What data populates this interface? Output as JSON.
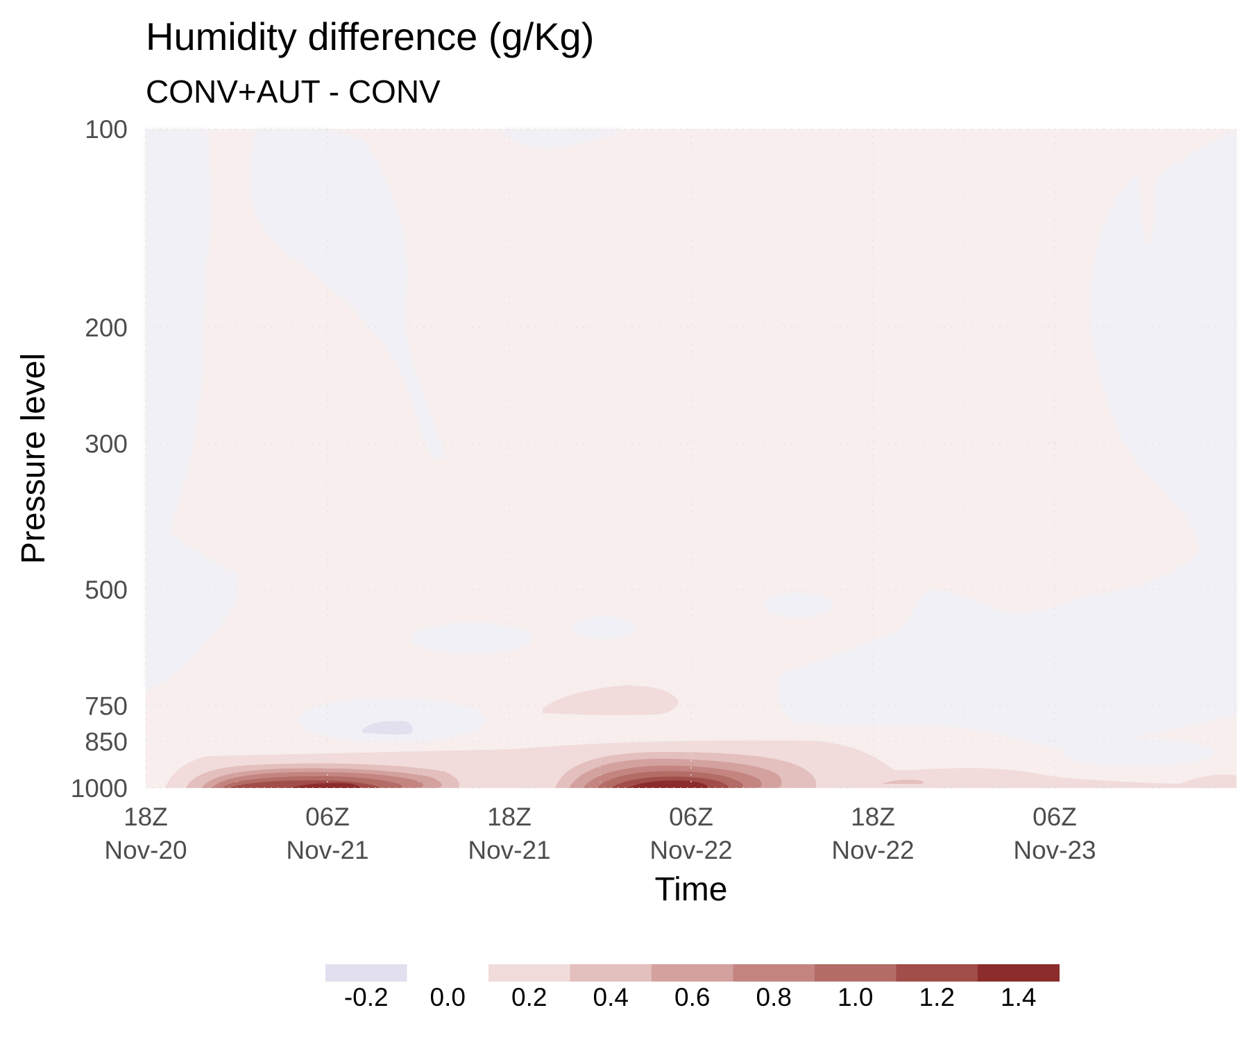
{
  "chart_data": {
    "type": "heatmap",
    "title": "Humidity difference (g/Kg)",
    "subtitle": "CONV+AUT - CONV",
    "xlabel": "Time",
    "ylabel": "Pressure level",
    "y_scale": "log",
    "y_reversed": true,
    "ylim": [
      1000,
      100
    ],
    "xlim": [
      "2019-11-20T18:00",
      "2019-11-23T18:00"
    ],
    "x_ticks": [
      {
        "value": "2019-11-20T18:00",
        "line1": "18Z",
        "line2": "Nov-20"
      },
      {
        "value": "2019-11-21T06:00",
        "line1": "06Z",
        "line2": "Nov-21"
      },
      {
        "value": "2019-11-21T18:00",
        "line1": "18Z",
        "line2": "Nov-21"
      },
      {
        "value": "2019-11-22T06:00",
        "line1": "06Z",
        "line2": "Nov-22"
      },
      {
        "value": "2019-11-22T18:00",
        "line1": "18Z",
        "line2": "Nov-22"
      },
      {
        "value": "2019-11-23T06:00",
        "line1": "06Z",
        "line2": "Nov-23"
      }
    ],
    "y_ticks": [
      100,
      200,
      300,
      500,
      750,
      850,
      1000
    ],
    "grid": true,
    "legend": {
      "position": "bottom",
      "bins": [
        {
          "label": "-0.2",
          "range": [
            -0.3,
            -0.1
          ],
          "color": "#e2dfef"
        },
        {
          "label": "0.0",
          "range": [
            -0.1,
            0.1
          ],
          "color": "#ffffff"
        },
        {
          "label": "0.2",
          "range": [
            0.1,
            0.3
          ],
          "color": "#f1dcdb"
        },
        {
          "label": "0.4",
          "range": [
            0.3,
            0.5
          ],
          "color": "#e3bfbd"
        },
        {
          "label": "0.6",
          "range": [
            0.5,
            0.7
          ],
          "color": "#d3a19e"
        },
        {
          "label": "0.8",
          "range": [
            0.7,
            0.9
          ],
          "color": "#c48580"
        },
        {
          "label": "1.0",
          "range": [
            0.9,
            1.1
          ],
          "color": "#b36c66"
        },
        {
          "label": "1.2",
          "range": [
            1.1,
            1.3
          ],
          "color": "#a14d49"
        },
        {
          "label": "1.4",
          "range": [
            1.3,
            1.5
          ],
          "color": "#8c2c2c"
        }
      ]
    },
    "background_fields": [
      {
        "region": "upper-left column",
        "time_range": [
          "2019-11-20T18:00",
          "2019-11-21T00:00"
        ],
        "pressure_range": [
          100,
          320
        ],
        "value": -0.05,
        "color": "#f1f0f6"
      },
      {
        "region": "upper column near Nov-21 06Z",
        "time_range": [
          "2019-11-21T03:00",
          "2019-11-21T09:00"
        ],
        "pressure_range": [
          100,
          310
        ],
        "value": -0.05,
        "color": "#f1f0f6"
      },
      {
        "region": "right side mid levels",
        "time_range": [
          "2019-11-22T15:00",
          "2019-11-23T18:00"
        ],
        "pressure_range": [
          500,
          850
        ],
        "value": -0.05,
        "color": "#f1f0f6"
      },
      {
        "region": "upper right",
        "time_range": [
          "2019-11-23T09:00",
          "2019-11-23T18:00"
        ],
        "pressure_range": [
          100,
          500
        ],
        "value": -0.05,
        "color": "#f1f0f6"
      },
      {
        "region": "general",
        "value": 0.05,
        "color": "#f7eeed"
      }
    ],
    "features": [
      {
        "name": "low-level moist anomaly A",
        "time_range": [
          "2019-11-20T19:00",
          "2019-11-21T13:00"
        ],
        "pressure_range": [
          870,
          1000
        ],
        "peak_time": "2019-11-21T04:00",
        "peak_pressure": 990,
        "peak_value": 1.4
      },
      {
        "name": "low-level moist anomaly B",
        "time_range": [
          "2019-11-21T18:00",
          "2019-11-22T13:00"
        ],
        "pressure_range": [
          850,
          1000
        ],
        "peak_time": "2019-11-22T04:00",
        "peak_pressure": 985,
        "peak_value": 1.4
      },
      {
        "name": "mid-level moist patch",
        "time_range": [
          "2019-11-21T20:00",
          "2019-11-22T04:00"
        ],
        "pressure_range": [
          700,
          770
        ],
        "peak_value": 0.2
      },
      {
        "name": "weak dry patch",
        "time_range": [
          "2019-11-21T06:00",
          "2019-11-21T09:00"
        ],
        "pressure_range": [
          790,
          820
        ],
        "peak_value": -0.2
      },
      {
        "name": "shallow band to the right",
        "time_range": [
          "2019-11-22T13:00",
          "2019-11-23T18:00"
        ],
        "pressure_range": [
          930,
          1000
        ],
        "peak_value": 0.2
      }
    ]
  }
}
